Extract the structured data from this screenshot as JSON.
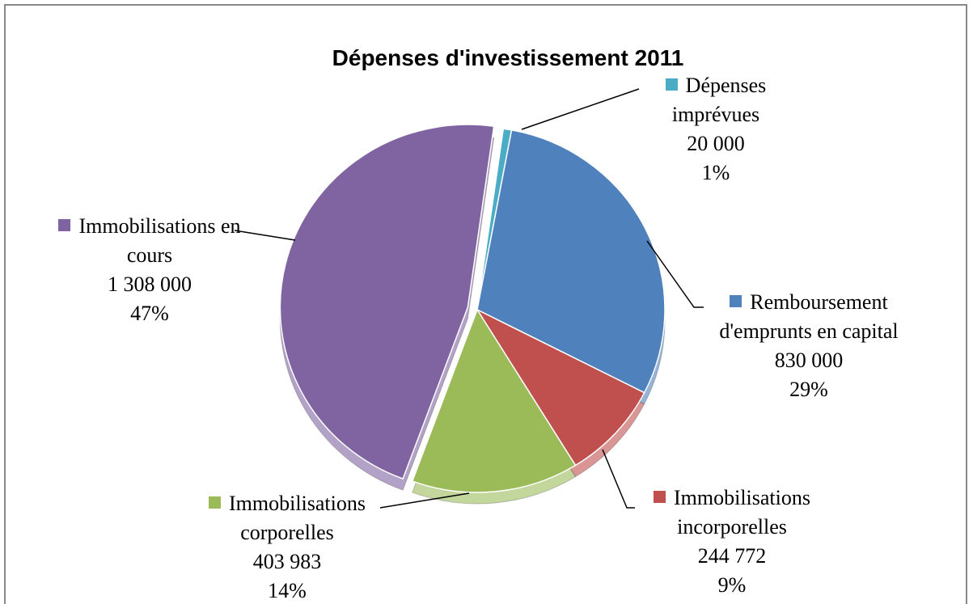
{
  "chart_data": {
    "type": "pie",
    "title": "Dépenses d'investissement 2011",
    "categories": [
      "Dépenses imprévues",
      "Remboursement d'emprunts en capital",
      "Immobilisations incorporelles",
      "Immobilisations corporelles",
      "Immobilisations en cours"
    ],
    "values": [
      20000,
      830000,
      244772,
      403983,
      1308000
    ],
    "value_labels": [
      "20 000",
      "830 000",
      "244 772",
      "403 983",
      "1 308 000"
    ],
    "percents": [
      1,
      29,
      9,
      14,
      47
    ],
    "percent_labels": [
      "1%",
      "29%",
      "9%",
      "14%",
      "47%"
    ],
    "colors": [
      "#4bacc6",
      "#4f81bd",
      "#c0504d",
      "#9bbb59",
      "#8064a2"
    ]
  }
}
